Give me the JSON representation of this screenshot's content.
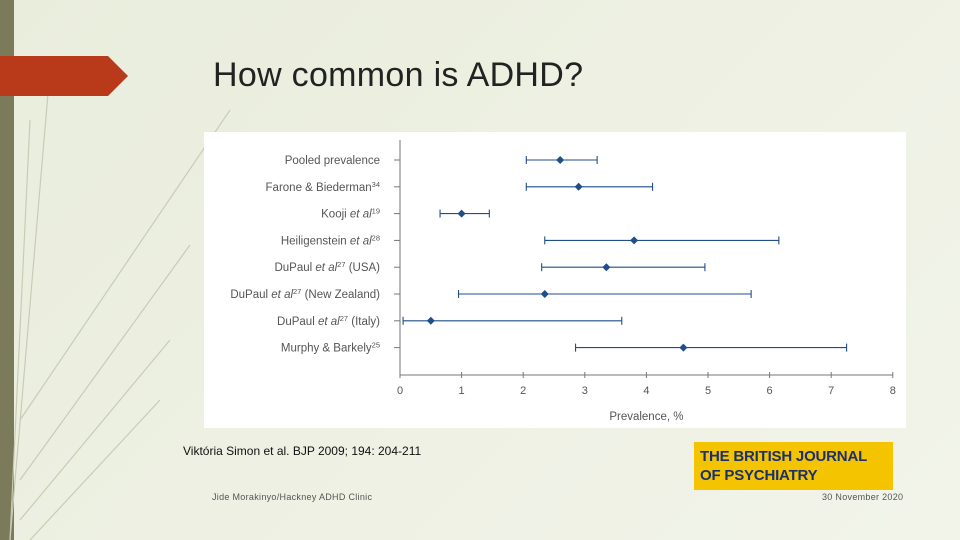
{
  "slide": {
    "title": "How common is ADHD?",
    "citation": "Viktória Simon et al. BJP 2009; 194: 204-211",
    "footer_left": "Jide Morakinyo/Hackney ADHD Clinic",
    "footer_right": "30 November 2020",
    "logo_line1": "THE BRITISH JOURNAL",
    "logo_line2": "OF PSYCHIATRY"
  },
  "colors": {
    "accent_tab": "#b93a1a",
    "marker": "#1f4e89",
    "logo_bg": "#f4c400",
    "logo_text": "#1b2f6e"
  },
  "chart_data": {
    "type": "scatter",
    "subtype": "forest-plot",
    "xlabel": "Prevalence, %",
    "xlim": [
      0,
      8
    ],
    "xticks": [
      0,
      1,
      2,
      3,
      4,
      5,
      6,
      7,
      8
    ],
    "grid": false,
    "rows": [
      {
        "parts": [
          {
            "t": "Pooled prevalence"
          }
        ],
        "estimate": 2.6,
        "lower": 2.05,
        "upper": 3.2
      },
      {
        "parts": [
          {
            "t": "Farone & Biederman"
          },
          {
            "t": "34",
            "sup": true
          }
        ],
        "estimate": 2.9,
        "lower": 2.05,
        "upper": 4.1
      },
      {
        "parts": [
          {
            "t": "Kooji "
          },
          {
            "t": "et al",
            "i": true
          },
          {
            "t": "19",
            "sup": true
          }
        ],
        "estimate": 1.0,
        "lower": 0.65,
        "upper": 1.45
      },
      {
        "parts": [
          {
            "t": "Heiligenstein "
          },
          {
            "t": "et al",
            "i": true
          },
          {
            "t": "28",
            "sup": true
          }
        ],
        "estimate": 3.8,
        "lower": 2.35,
        "upper": 6.15
      },
      {
        "parts": [
          {
            "t": "DuPaul "
          },
          {
            "t": "et al",
            "i": true
          },
          {
            "t": "27",
            "sup": true
          },
          {
            "t": " (USA)"
          }
        ],
        "estimate": 3.35,
        "lower": 2.3,
        "upper": 4.95
      },
      {
        "parts": [
          {
            "t": "DuPaul "
          },
          {
            "t": "et al",
            "i": true
          },
          {
            "t": "27",
            "sup": true
          },
          {
            "t": " (New Zealand)"
          }
        ],
        "estimate": 2.35,
        "lower": 0.95,
        "upper": 5.7
      },
      {
        "parts": [
          {
            "t": "DuPaul "
          },
          {
            "t": "et al",
            "i": true
          },
          {
            "t": "27",
            "sup": true
          },
          {
            "t": " (Italy)"
          }
        ],
        "estimate": 0.5,
        "lower": 0.05,
        "upper": 3.6
      },
      {
        "parts": [
          {
            "t": "Murphy & Barkely"
          },
          {
            "t": "25",
            "sup": true
          }
        ],
        "estimate": 4.6,
        "lower": 2.85,
        "upper": 7.25
      }
    ]
  }
}
